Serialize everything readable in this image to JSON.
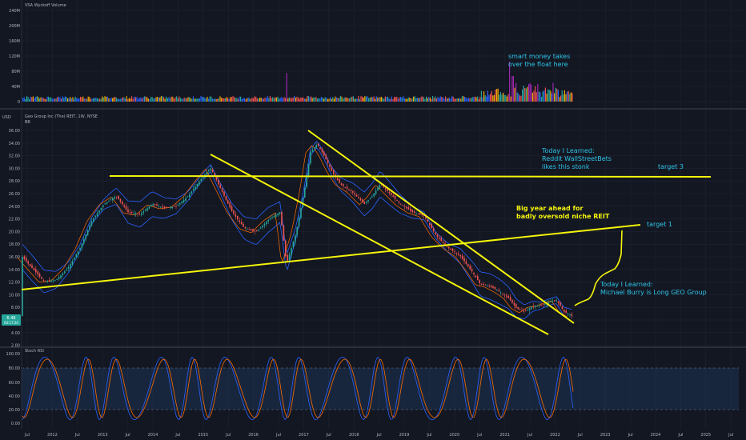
{
  "colors": {
    "background": "#131722",
    "up": "#26a69a",
    "down": "#ef5350",
    "trendline": "#f5f50a",
    "note_cyan": "#2ec4e8",
    "note_yellow": "#f5f50a",
    "bands": "#2962ff",
    "stoch_k": "#2962ff",
    "stoch_d": "#ff6d00",
    "volume_spike": "#9c27b0"
  },
  "volume_pane": {
    "title": "VSA Wyckoff Volume",
    "axis_ticks": [
      "240M",
      "200M",
      "160M",
      "120M",
      "80M",
      "40M",
      "0"
    ],
    "annotation": [
      "smart money takes",
      "over the float here"
    ]
  },
  "price_pane": {
    "currency": "USD",
    "title": "Geo Group Inc (The) REIT, 1W, NYSE",
    "indicator": "BB",
    "axis_ticks": [
      "36.00",
      "34.00",
      "32.00",
      "30.00",
      "28.00",
      "26.00",
      "24.00",
      "22.00",
      "20.00",
      "18.00",
      "16.00",
      "14.00",
      "12.00",
      "10.00",
      "8.00",
      "6.00",
      "4.00",
      "2.00"
    ],
    "last_price": "6.46",
    "countdown": "04:17:20",
    "notes": {
      "wsb": [
        "Today I Learned:",
        "Reddit WallStreetBets",
        "likes this stonk"
      ],
      "big_year": [
        "Big year ahead for",
        "badly oversold niche REIT"
      ],
      "burry": [
        "Today I Learned:",
        "Michael Burry is Long GEO Group"
      ],
      "target3": "target 3",
      "target1": "target 1"
    }
  },
  "stoch_pane": {
    "title": "Stoch RSI",
    "axis_ticks": [
      "100.00",
      "80.00",
      "60.00",
      "40.00",
      "20.00",
      "0.00"
    ]
  },
  "time_axis": [
    "Jul",
    "2012",
    "Jul",
    "2013",
    "Jul",
    "2014",
    "Jul",
    "2015",
    "Jul",
    "2016",
    "Jul",
    "2017",
    "Jul",
    "2018",
    "Jul",
    "2019",
    "Jul",
    "2020",
    "Jul",
    "2021",
    "Jul",
    "2022",
    "Jul",
    "2023",
    "Jul",
    "2024",
    "Jul",
    "2025",
    "Jul"
  ]
}
